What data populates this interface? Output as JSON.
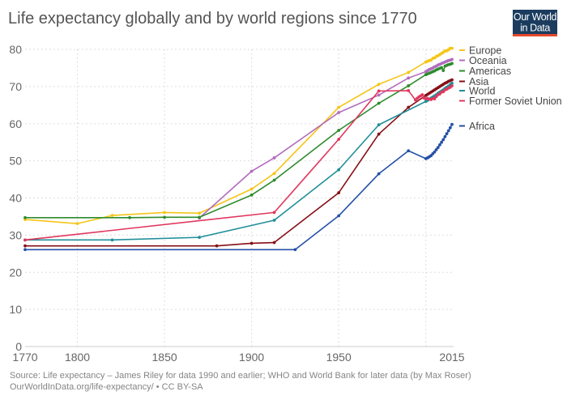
{
  "logo": {
    "line1": "Our World",
    "line2": "in Data",
    "bg_color": "#1b3c5e",
    "accent_color": "#e5492c"
  },
  "footer": {
    "source": "Source: Life expectancy – James Riley for data 1990 and earlier; WHO and World Bank for later data (by Max Roser)",
    "link": "OurWorldInData.org/life-expectancy/ • CC BY-SA"
  },
  "chart_data": {
    "type": "line",
    "title": "Life expectancy globally and by world regions since 1770",
    "xlabel": "",
    "ylabel": "",
    "xlim": [
      1770,
      2015
    ],
    "ylim": [
      0,
      80
    ],
    "x_ticks": [
      "1770",
      "1800",
      "1850",
      "1900",
      "1950",
      "2015"
    ],
    "x_grid": [
      1800,
      1850,
      1900,
      1950,
      2000
    ],
    "y_ticks": [
      "0",
      "10",
      "20",
      "30",
      "40",
      "50",
      "60",
      "70",
      "80"
    ],
    "grid": true,
    "legend_position": "right",
    "series": [
      {
        "name": "Europe",
        "color": "#f5c518",
        "points": [
          [
            1770,
            34.2
          ],
          [
            1800,
            33.1
          ],
          [
            1820,
            35.3
          ],
          [
            1850,
            36.1
          ],
          [
            1870,
            35.9
          ],
          [
            1900,
            42.4
          ],
          [
            1913,
            46.6
          ],
          [
            1950,
            64.4
          ],
          [
            1973,
            70.6
          ],
          [
            1990,
            73.8
          ],
          [
            2000,
            76.6
          ],
          [
            2001,
            76.8
          ],
          [
            2002,
            77.0
          ],
          [
            2003,
            77.1
          ],
          [
            2004,
            77.6
          ],
          [
            2005,
            77.7
          ],
          [
            2006,
            78.1
          ],
          [
            2007,
            78.3
          ],
          [
            2008,
            78.6
          ],
          [
            2009,
            78.9
          ],
          [
            2010,
            79.2
          ],
          [
            2011,
            79.6
          ],
          [
            2012,
            79.6
          ],
          [
            2013,
            79.9
          ],
          [
            2014,
            80.3
          ],
          [
            2015,
            80.3
          ]
        ]
      },
      {
        "name": "Oceania",
        "color": "#b26bbd",
        "points": [
          [
            1870,
            34.6
          ],
          [
            1900,
            47.2
          ],
          [
            1913,
            50.8
          ],
          [
            1950,
            63.0
          ],
          [
            1973,
            67.7
          ],
          [
            1990,
            72.3
          ],
          [
            2000,
            74.0
          ],
          [
            2001,
            74.3
          ],
          [
            2002,
            74.6
          ],
          [
            2003,
            74.8
          ],
          [
            2004,
            75.0
          ],
          [
            2005,
            75.3
          ],
          [
            2006,
            75.5
          ],
          [
            2007,
            75.8
          ],
          [
            2008,
            76.0
          ],
          [
            2009,
            76.2
          ],
          [
            2010,
            76.4
          ],
          [
            2011,
            76.6
          ],
          [
            2012,
            76.8
          ],
          [
            2013,
            77.0
          ],
          [
            2014,
            77.1
          ],
          [
            2015,
            77.3
          ]
        ]
      },
      {
        "name": "Americas",
        "color": "#2e8b2e",
        "points": [
          [
            1770,
            34.7
          ],
          [
            1830,
            34.7
          ],
          [
            1850,
            34.8
          ],
          [
            1870,
            34.8
          ],
          [
            1900,
            40.8
          ],
          [
            1913,
            44.8
          ],
          [
            1950,
            58.2
          ],
          [
            1973,
            65.5
          ],
          [
            1990,
            70.2
          ],
          [
            2000,
            73.2
          ],
          [
            2001,
            73.4
          ],
          [
            2002,
            73.6
          ],
          [
            2003,
            73.8
          ],
          [
            2004,
            74.0
          ],
          [
            2005,
            74.2
          ],
          [
            2006,
            74.5
          ],
          [
            2007,
            74.7
          ],
          [
            2008,
            74.9
          ],
          [
            2009,
            75.1
          ],
          [
            2010,
            74.3
          ],
          [
            2011,
            75.5
          ],
          [
            2012,
            75.7
          ],
          [
            2013,
            75.9
          ],
          [
            2014,
            76.0
          ],
          [
            2015,
            76.2
          ]
        ]
      },
      {
        "name": "Asia",
        "color": "#850f16",
        "points": [
          [
            1770,
            27.1
          ],
          [
            1880,
            27.1
          ],
          [
            1900,
            27.8
          ],
          [
            1913,
            28.0
          ],
          [
            1950,
            41.4
          ],
          [
            1973,
            57.2
          ],
          [
            1990,
            64.4
          ],
          [
            2000,
            67.6
          ],
          [
            2001,
            67.9
          ],
          [
            2002,
            68.2
          ],
          [
            2003,
            68.5
          ],
          [
            2004,
            68.8
          ],
          [
            2005,
            69.1
          ],
          [
            2006,
            69.4
          ],
          [
            2007,
            69.7
          ],
          [
            2008,
            70.0
          ],
          [
            2009,
            70.3
          ],
          [
            2010,
            70.6
          ],
          [
            2011,
            70.9
          ],
          [
            2012,
            71.1
          ],
          [
            2013,
            71.4
          ],
          [
            2014,
            71.6
          ],
          [
            2015,
            71.8
          ]
        ]
      },
      {
        "name": "World",
        "color": "#1f8f99",
        "points": [
          [
            1770,
            28.7
          ],
          [
            1820,
            28.7
          ],
          [
            1870,
            29.4
          ],
          [
            1913,
            34.0
          ],
          [
            1950,
            47.6
          ],
          [
            1973,
            59.7
          ],
          [
            2000,
            66.0
          ],
          [
            2001,
            66.3
          ],
          [
            2002,
            66.6
          ],
          [
            2003,
            66.9
          ],
          [
            2004,
            67.2
          ],
          [
            2005,
            67.5
          ],
          [
            2006,
            67.8
          ],
          [
            2007,
            68.2
          ],
          [
            2008,
            68.5
          ],
          [
            2009,
            68.8
          ],
          [
            2010,
            69.1
          ],
          [
            2011,
            69.5
          ],
          [
            2012,
            69.8
          ],
          [
            2013,
            70.1
          ],
          [
            2014,
            70.5
          ],
          [
            2015,
            70.9
          ]
        ]
      },
      {
        "name": "Former Soviet Union",
        "color": "#e0375e",
        "points": [
          [
            1770,
            28.7
          ],
          [
            1913,
            36.1
          ],
          [
            1950,
            55.8
          ],
          [
            1973,
            68.8
          ],
          [
            1990,
            68.9
          ],
          [
            1994,
            66.4
          ],
          [
            1995,
            66.8
          ],
          [
            1996,
            67.2
          ],
          [
            1997,
            67.5
          ],
          [
            1998,
            67.8
          ],
          [
            1999,
            66.9
          ],
          [
            2000,
            66.7
          ],
          [
            2001,
            66.8
          ],
          [
            2002,
            66.6
          ],
          [
            2003,
            66.5
          ],
          [
            2004,
            66.8
          ],
          [
            2005,
            66.7
          ],
          [
            2006,
            67.3
          ],
          [
            2007,
            67.8
          ],
          [
            2008,
            68.0
          ],
          [
            2009,
            68.5
          ],
          [
            2010,
            68.6
          ],
          [
            2011,
            69.1
          ],
          [
            2012,
            69.3
          ],
          [
            2013,
            69.6
          ],
          [
            2014,
            69.8
          ],
          [
            2015,
            70.2
          ]
        ]
      },
      {
        "name": "Africa",
        "color": "#2450a6",
        "points": [
          [
            1770,
            26.1
          ],
          [
            1925,
            26.1
          ],
          [
            1950,
            35.2
          ],
          [
            1973,
            46.5
          ],
          [
            1990,
            52.7
          ],
          [
            2000,
            50.6
          ],
          [
            2001,
            50.8
          ],
          [
            2002,
            51.1
          ],
          [
            2003,
            51.4
          ],
          [
            2004,
            51.9
          ],
          [
            2005,
            52.4
          ],
          [
            2006,
            53.0
          ],
          [
            2007,
            53.6
          ],
          [
            2008,
            54.3
          ],
          [
            2009,
            55.0
          ],
          [
            2010,
            55.7
          ],
          [
            2011,
            56.5
          ],
          [
            2012,
            57.3
          ],
          [
            2013,
            58.1
          ],
          [
            2014,
            58.9
          ],
          [
            2015,
            59.8
          ]
        ]
      }
    ]
  }
}
